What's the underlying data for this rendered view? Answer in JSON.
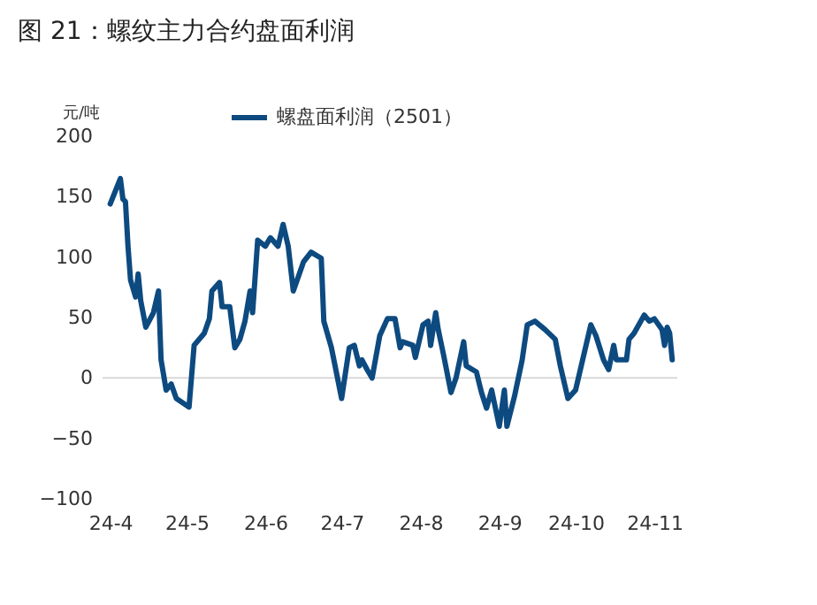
{
  "chart_data": {
    "type": "line",
    "title": "图 21：螺纹主力合约盘面利润",
    "ylabel": "元/吨",
    "x": [
      "--04-01",
      "--04-05",
      "--04-06",
      "--04-07",
      "--04-08",
      "--04-09",
      "--04-11",
      "--04-12",
      "--04-13",
      "--04-15",
      "--04-18",
      "--04-20",
      "--04-21",
      "--04-23",
      "--04-25",
      "--04-27",
      "--05-02",
      "--05-04",
      "--05-08",
      "--05-10",
      "--05-11",
      "--05-14",
      "--05-15",
      "--05-18",
      "--05-20",
      "--05-22",
      "--05-24",
      "--05-26",
      "--05-27",
      "--05-29",
      "--06-01",
      "--06-03",
      "--06-06",
      "--06-08",
      "--06-10",
      "--06-12",
      "--06-16",
      "--06-19",
      "--06-23",
      "--06-24",
      "--06-27",
      "--07-01",
      "--07-04",
      "--07-06",
      "--07-08",
      "--07-09",
      "--07-11",
      "--07-13",
      "--07-16",
      "--07-19",
      "--07-22",
      "--07-24",
      "--07-25",
      "--07-29",
      "--07-30",
      "--08-02",
      "--08-04",
      "--08-05",
      "--08-07",
      "--08-08",
      "--08-10",
      "--08-13",
      "--08-15",
      "--08-18",
      "--08-19",
      "--08-23",
      "--08-25",
      "--08-27",
      "--08-29",
      "--09-01",
      "--09-03",
      "--09-04",
      "--09-07",
      "--09-10",
      "--09-12",
      "--09-15",
      "--09-19",
      "--09-23",
      "--09-25",
      "--09-28",
      "--10-01",
      "--10-07",
      "--10-09",
      "--10-12",
      "--10-14",
      "--10-16",
      "--10-17",
      "--10-21",
      "--10-22",
      "--10-24",
      "--10-28",
      "--10-30",
      "--11-01",
      "--11-04",
      "--11-05",
      "--11-06",
      "--11-07",
      "--11-08"
    ],
    "series": [
      {
        "name": "螺盘面利润（2501）",
        "color": "#0d4a80",
        "values": [
          144,
          165,
          148,
          146,
          109,
          81,
          67,
          86,
          64,
          42,
          54,
          72,
          15,
          -10,
          -5,
          -17,
          -24,
          27,
          37,
          49,
          72,
          79,
          59,
          59,
          25,
          32,
          47,
          72,
          54,
          114,
          109,
          116,
          109,
          127,
          109,
          72,
          96,
          104,
          99,
          47,
          25,
          -17,
          25,
          27,
          10,
          15,
          7,
          0,
          35,
          49,
          49,
          25,
          30,
          27,
          17,
          44,
          47,
          27,
          54,
          40,
          20,
          -12,
          0,
          30,
          10,
          5,
          -12,
          -25,
          -10,
          -40,
          -10,
          -40,
          -15,
          15,
          44,
          47,
          40,
          32,
          10,
          -17,
          -10,
          44,
          35,
          15,
          7,
          27,
          15,
          15,
          32,
          37,
          52,
          47,
          49,
          40,
          27,
          42,
          37,
          15
        ]
      }
    ],
    "xlim": [
      "--03-29",
      "--11-10"
    ],
    "xticks": [
      {
        "value": "--04-01",
        "label": "24-4"
      },
      {
        "value": "--05-01",
        "label": "24-5"
      },
      {
        "value": "--06-01",
        "label": "24-6"
      },
      {
        "value": "--07-01",
        "label": "24-7"
      },
      {
        "value": "--08-01",
        "label": "24-8"
      },
      {
        "value": "--09-01",
        "label": "24-9"
      },
      {
        "value": "--10-01",
        "label": "24-10"
      },
      {
        "value": "--11-01",
        "label": "24-11"
      }
    ],
    "ylim": [
      -100,
      200
    ],
    "yticks": [
      -100,
      -50,
      0,
      50,
      100,
      150,
      200
    ],
    "ref_lines": [
      {
        "axis": "y",
        "value": 0,
        "color": "#d9d9d9"
      }
    ],
    "grid": false,
    "legend": "top",
    "line_style": "solid"
  }
}
